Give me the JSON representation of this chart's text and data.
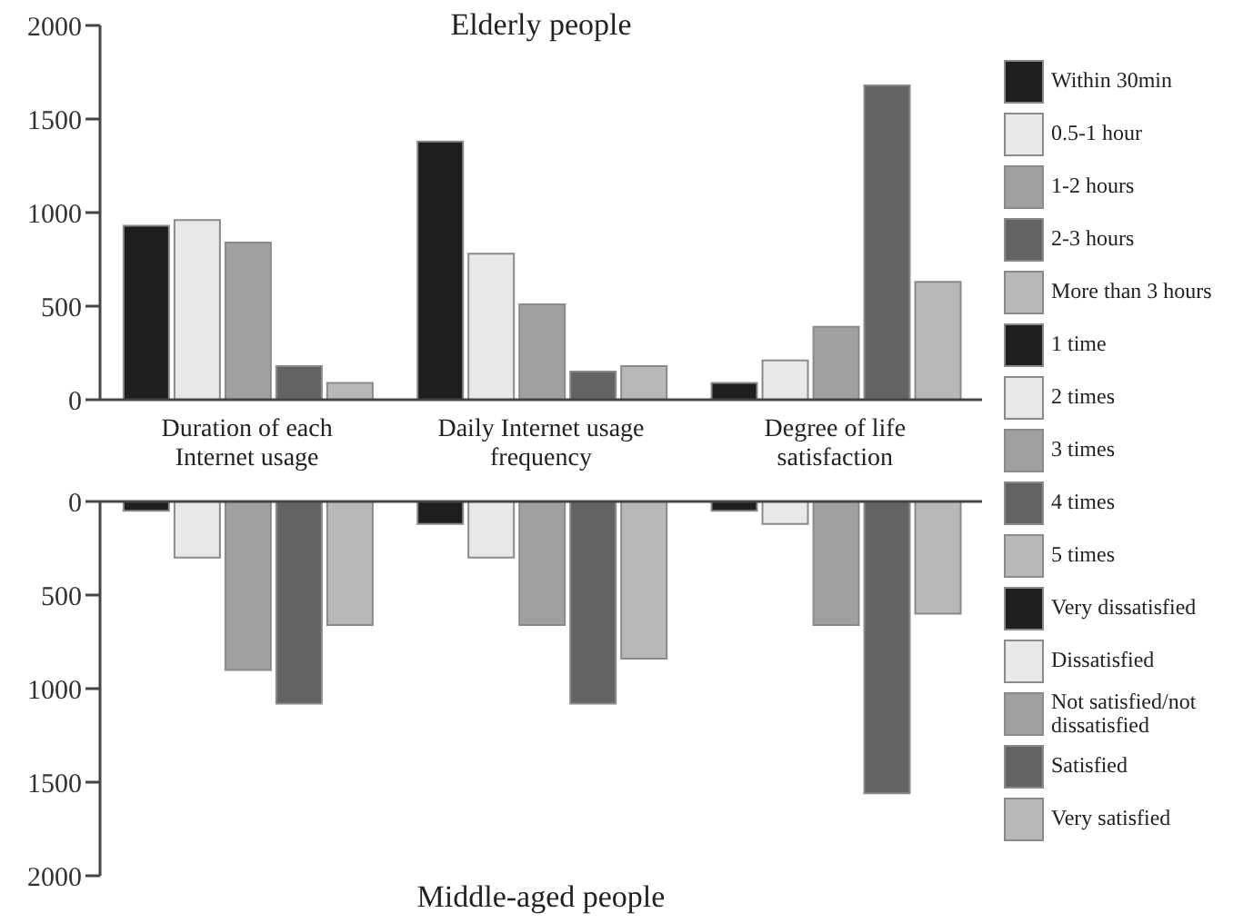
{
  "chart_data": [
    {
      "type": "bar",
      "title": "Elderly people",
      "categories": [
        "Duration of each Internet usage",
        "Daily Internet usage frequency",
        "Degree of life satisfaction"
      ],
      "ylim": [
        0,
        2000
      ],
      "yticks": [
        0,
        500,
        1000,
        1500,
        2000
      ],
      "legend": "right",
      "series": [
        {
          "name": "Within 30min",
          "color": "#1e1e1e",
          "values": [
            930,
            null,
            null
          ]
        },
        {
          "name": "0.5-1 hour",
          "color": "#e8e8e8",
          "values": [
            960,
            null,
            null
          ]
        },
        {
          "name": "1-2 hours",
          "color": "#a0a0a0",
          "values": [
            840,
            null,
            null
          ]
        },
        {
          "name": "2-3 hours",
          "color": "#636363",
          "values": [
            180,
            null,
            null
          ]
        },
        {
          "name": "More than 3 hours",
          "color": "#b8b8b8",
          "values": [
            90,
            null,
            null
          ]
        },
        {
          "name": "1 time",
          "color": "#1e1e1e",
          "values": [
            null,
            1380,
            null
          ]
        },
        {
          "name": "2 times",
          "color": "#e8e8e8",
          "values": [
            null,
            780,
            null
          ]
        },
        {
          "name": "3 times",
          "color": "#a0a0a0",
          "values": [
            null,
            510,
            null
          ]
        },
        {
          "name": "4 times",
          "color": "#636363",
          "values": [
            null,
            150,
            null
          ]
        },
        {
          "name": "5 times",
          "color": "#b8b8b8",
          "values": [
            null,
            180,
            null
          ]
        },
        {
          "name": "Very dissatisfied",
          "color": "#1e1e1e",
          "values": [
            null,
            null,
            90
          ]
        },
        {
          "name": "Dissatisfied",
          "color": "#e8e8e8",
          "values": [
            null,
            null,
            210
          ]
        },
        {
          "name": "Not satisfied/not dissatisfied",
          "color": "#a0a0a0",
          "values": [
            null,
            null,
            390
          ]
        },
        {
          "name": "Satisfied",
          "color": "#636363",
          "values": [
            null,
            null,
            1680
          ]
        },
        {
          "name": "Very satisfied",
          "color": "#b8b8b8",
          "values": [
            null,
            null,
            630
          ]
        }
      ]
    },
    {
      "type": "bar",
      "title": "Middle-aged people",
      "categories": [
        null,
        null,
        null
      ],
      "tick_labels": "y",
      "ylim": [
        2000,
        0
      ],
      "yticks": [
        0,
        500,
        1000,
        1500,
        2000
      ],
      "series": [
        {
          "color": "#1e1e1e",
          "values": [
            50,
            null,
            null
          ]
        },
        {
          "color": "#e8e8e8",
          "values": [
            300,
            null,
            null
          ]
        },
        {
          "color": "#a0a0a0",
          "values": [
            900,
            null,
            null
          ]
        },
        {
          "color": "#636363",
          "values": [
            1080,
            null,
            null
          ]
        },
        {
          "color": "#b8b8b8",
          "values": [
            660,
            null,
            null
          ]
        },
        {
          "color": "#1e1e1e",
          "values": [
            null,
            120,
            null
          ]
        },
        {
          "color": "#e8e8e8",
          "values": [
            null,
            300,
            null
          ]
        },
        {
          "color": "#a0a0a0",
          "values": [
            null,
            660,
            null
          ]
        },
        {
          "color": "#636363",
          "values": [
            null,
            1080,
            null
          ]
        },
        {
          "color": "#b8b8b8",
          "values": [
            null,
            840,
            null
          ]
        },
        {
          "color": "#1e1e1e",
          "values": [
            null,
            null,
            50
          ]
        },
        {
          "color": "#e8e8e8",
          "values": [
            null,
            null,
            120
          ]
        },
        {
          "color": "#a0a0a0",
          "values": [
            null,
            null,
            660
          ]
        },
        {
          "color": "#636363",
          "values": [
            null,
            null,
            1560
          ]
        },
        {
          "color": "#b8b8b8",
          "values": [
            null,
            null,
            600
          ]
        }
      ]
    }
  ]
}
